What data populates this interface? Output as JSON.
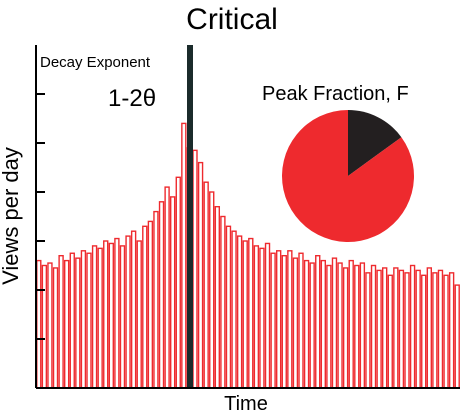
{
  "chart_data": [
    {
      "type": "bar",
      "title": "Critical",
      "annotations": [
        "Decay Exponent",
        "1-2θ"
      ],
      "y_label": "Views per day",
      "x_label": "Time",
      "color": "#ee2a2e",
      "values": [
        2.6,
        2.5,
        2.55,
        2.45,
        2.7,
        2.6,
        2.75,
        2.65,
        2.8,
        2.75,
        2.9,
        2.85,
        3.0,
        2.95,
        3.05,
        2.9,
        3.1,
        3.2,
        3.0,
        3.3,
        3.4,
        3.6,
        3.8,
        4.1,
        3.9,
        4.3,
        5.4,
        4.9,
        4.85,
        4.6,
        4.2,
        4.0,
        3.7,
        3.5,
        3.3,
        3.2,
        3.1,
        3.0,
        3.05,
        2.9,
        2.85,
        2.95,
        2.75,
        2.8,
        2.7,
        2.8,
        2.65,
        2.75,
        2.6,
        2.55,
        2.7,
        2.6,
        2.5,
        2.65,
        2.55,
        2.45,
        2.6,
        2.5,
        2.55,
        2.35,
        2.5,
        2.4,
        2.45,
        2.3,
        2.45,
        2.4,
        2.35,
        2.5,
        2.4,
        2.3,
        2.45,
        2.35,
        2.4,
        2.3,
        2.35,
        2.1
      ],
      "ylim": [
        0,
        7
      ],
      "yticks": [
        1,
        2,
        3,
        4,
        5,
        6
      ]
    },
    {
      "type": "pie",
      "title": "Peak Fraction, F",
      "values": [
        15,
        85
      ],
      "colors": [
        "#231f20",
        "#ee2a2e"
      ]
    }
  ]
}
